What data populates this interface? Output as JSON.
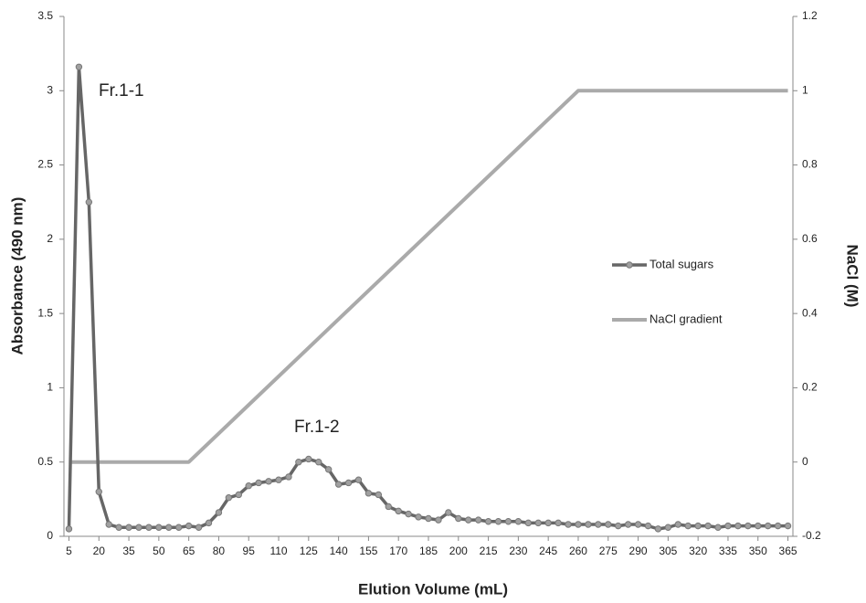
{
  "chart_data": {
    "type": "line",
    "x_label": "Elution Volume (mL)",
    "y_label": "Absorbance (490 nm)",
    "y2_label": "NaCl (M)",
    "x": [
      5,
      10,
      15,
      20,
      25,
      30,
      35,
      40,
      45,
      50,
      55,
      60,
      65,
      70,
      75,
      80,
      85,
      90,
      95,
      100,
      105,
      110,
      115,
      120,
      125,
      130,
      135,
      140,
      145,
      150,
      155,
      160,
      165,
      170,
      175,
      180,
      185,
      190,
      195,
      200,
      205,
      210,
      215,
      220,
      225,
      230,
      235,
      240,
      245,
      250,
      255,
      260,
      265,
      270,
      275,
      280,
      285,
      290,
      295,
      300,
      305,
      310,
      315,
      320,
      325,
      330,
      335,
      340,
      345,
      350,
      355,
      360,
      365
    ],
    "xlim": [
      2.5,
      367.5
    ],
    "xticks": [
      5,
      20,
      35,
      50,
      65,
      80,
      95,
      110,
      125,
      140,
      155,
      170,
      185,
      200,
      215,
      230,
      245,
      260,
      275,
      290,
      305,
      320,
      335,
      350,
      365
    ],
    "ylim": [
      0,
      3.5
    ],
    "yticks": [
      0,
      0.5,
      1,
      1.5,
      2,
      2.5,
      3,
      3.5
    ],
    "y2lim": [
      -0.2,
      1.2
    ],
    "y2ticks": [
      -0.2,
      0,
      0.2,
      0.4,
      0.6,
      0.8,
      1,
      1.2
    ],
    "grid": false,
    "legend": "right",
    "series": [
      {
        "name": "Total sugars",
        "color": "#666666",
        "values": [
          0.05,
          3.16,
          2.25,
          0.3,
          0.08,
          0.06,
          0.06,
          0.06,
          0.06,
          0.06,
          0.06,
          0.06,
          0.07,
          0.06,
          0.09,
          0.16,
          0.26,
          0.28,
          0.34,
          0.36,
          0.37,
          0.38,
          0.4,
          0.5,
          0.52,
          0.5,
          0.45,
          0.35,
          0.36,
          0.38,
          0.29,
          0.28,
          0.2,
          0.17,
          0.15,
          0.13,
          0.12,
          0.11,
          0.16,
          0.12,
          0.11,
          0.11,
          0.1,
          0.1,
          0.1,
          0.1,
          0.09,
          0.09,
          0.09,
          0.09,
          0.08,
          0.08,
          0.08,
          0.08,
          0.08,
          0.07,
          0.08,
          0.08,
          0.07,
          0.05,
          0.06,
          0.08,
          0.07,
          0.07,
          0.07,
          0.06,
          0.07,
          0.07,
          0.07,
          0.07,
          0.07,
          0.07,
          0.07
        ]
      },
      {
        "name": "NaCl gradient",
        "color": "#aaaaaa",
        "axis": "y2",
        "x": [
          5,
          65,
          260,
          365
        ],
        "values": [
          0,
          0,
          1,
          1
        ]
      }
    ],
    "annotations": [
      "Fr.1-1",
      "Fr.1-2"
    ]
  }
}
